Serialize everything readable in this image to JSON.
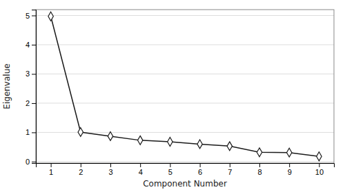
{
  "chart_data": {
    "type": "line",
    "x": [
      1,
      2,
      3,
      4,
      5,
      6,
      7,
      8,
      9,
      10
    ],
    "values": [
      4.97,
      1.01,
      0.87,
      0.73,
      0.68,
      0.6,
      0.53,
      0.32,
      0.31,
      0.18
    ],
    "xlabel": "Component Number",
    "ylabel": "Eigenvalue",
    "xlim": [
      0.5,
      10.5
    ],
    "ylim": [
      -0.05,
      5.2
    ],
    "xticks": [
      1,
      2,
      3,
      4,
      5,
      6,
      7,
      8,
      9,
      10
    ],
    "yticks": [
      0,
      1,
      2,
      3,
      4,
      5
    ],
    "color": "#1a1a1a",
    "marker": "diamond",
    "grid": "y"
  }
}
